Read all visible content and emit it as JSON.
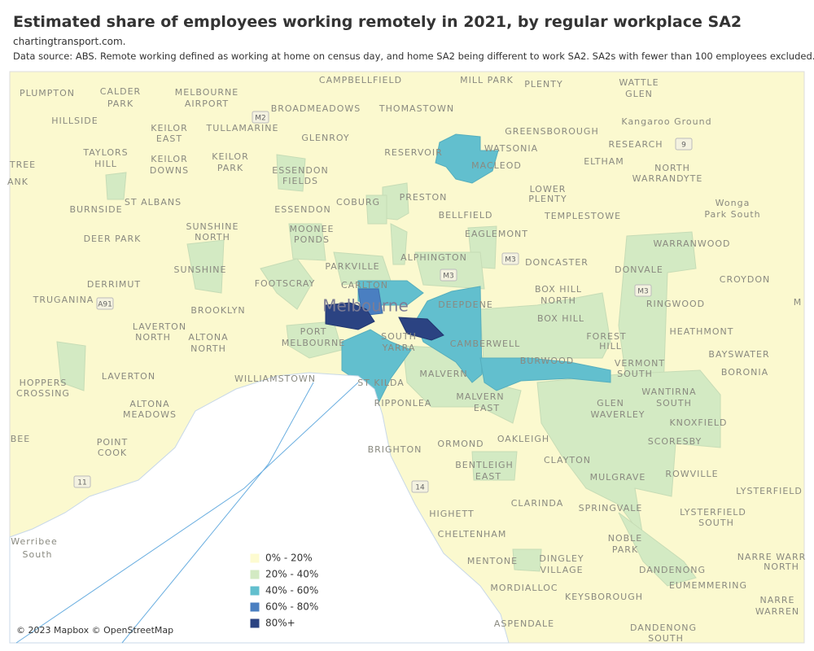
{
  "header": {
    "title": "Estimated share of employees working remotely in 2021, by regular workplace SA2",
    "site": "chartingtransport.com.",
    "source": "Data source: ABS. Remote working defined as working at home on census day, and home SA2 being different to work SA2. SA2s with fewer than 100 employees excluded."
  },
  "map": {
    "labels": [
      "CAMPBELLFIELD",
      "MILL PARK",
      "PLENTY",
      "WATTLE",
      "GLEN",
      "PLUMPTON",
      "CALDER",
      "PARK",
      "MELBOURNE",
      "AIRPORT",
      "BROADMEADOWS",
      "THOMASTOWN",
      "HILLSIDE",
      "KEILOR",
      "EAST",
      "TULLAMARINE",
      "GLENROY",
      "GREENSBOROUGH",
      "Kangaroo Ground",
      "RESERVOIR",
      "WATSONIA",
      "RESEARCH",
      "TAYLORS",
      "HILL",
      "KEILOR",
      "DOWNS",
      "KEILOR",
      "PARK",
      "ESSENDON",
      "FIELDS",
      "MACLEOD",
      "ELTHAM",
      "TREE",
      "ANK",
      "NORTH",
      "WARRANDYTE",
      "LOWER",
      "PLENTY",
      "COBURG",
      "PRESTON",
      "ST ALBANS",
      "ESSENDON",
      "Wonga",
      "Park South",
      "BURNSIDE",
      "SUNSHINE",
      "NORTH",
      "BELLFIELD",
      "TEMPLESTOWE",
      "MOONEE",
      "PONDS",
      "DEER PARK",
      "EAGLEMONT",
      "WARRANWOOD",
      "ALPHINGTON",
      "PARKVILLE",
      "DONCASTER",
      "SUNSHINE",
      "DONVALE",
      "CROYDON",
      "DERRIMUT",
      "FOOTSCRAY",
      "CARLTON",
      "BOX HILL",
      "NORTH",
      "TRUGANINA",
      "RINGWOOD",
      "BROOKLYN",
      "DEEPDENE",
      "BOX HILL",
      "M",
      "LAVERTON",
      "NORTH",
      "ALTONA",
      "NORTH",
      "PORT",
      "MELBOURNE",
      "SOUTH",
      "YARRA",
      "FOREST",
      "HILL",
      "HEATHMONT",
      "CAMBERWELL",
      "BURWOOD",
      "VERMONT",
      "SOUTH",
      "BAYSWATER",
      "BORONIA",
      "LAVERTON",
      "WILLIAMSTOWN",
      "ST KILDA",
      "MALVERN",
      "WANTIRNA",
      "SOUTH",
      "HOPPERS",
      "CROSSING",
      "RIPPONLEA",
      "MALVERN",
      "EAST",
      "GLEN",
      "WAVERLEY",
      "KNOXFIELD",
      "ALTONA",
      "MEADOWS",
      "BRIGHTON",
      "ORMOND",
      "OAKLEIGH",
      "SCORESBY",
      "BEE",
      "POINT",
      "COOK",
      "CLAYTON",
      "BENTLEIGH",
      "EAST",
      "ROWVILLE",
      "MULGRAVE",
      "LYSTERFIELD",
      "CLARINDA",
      "SPRINGVALE",
      "HIGHETT",
      "LYSTERFIELD",
      "SOUTH",
      "CHELTENHAM",
      "NOBLE",
      "PARK",
      "Werribee",
      "South",
      "NARRE WARR",
      "NORTH",
      "MENTONE",
      "DINGLEY",
      "VILLAGE",
      "DANDENONG",
      "EUMEMMERING",
      "MORDIALLOC",
      "KEYSBOROUGH",
      "NARRE",
      "WARREN",
      "ASPENDALE",
      "DANDENONG",
      "SOUTH"
    ],
    "city": "Melbourne",
    "road_shields": [
      "M2",
      "M3",
      "M3",
      "M3",
      "A91",
      "9",
      "11",
      "14"
    ],
    "legend": [
      {
        "label": "0% - 20%",
        "color": "#fdfbd0"
      },
      {
        "label": "20% - 40%",
        "color": "#d3eac3"
      },
      {
        "label": "40% - 60%",
        "color": "#62bfce"
      },
      {
        "label": "60% - 80%",
        "color": "#4a7fc1"
      },
      {
        "label": "80%+",
        "color": "#2b4382"
      }
    ],
    "attribution": "© 2023 Mapbox © OpenStreetMap"
  }
}
